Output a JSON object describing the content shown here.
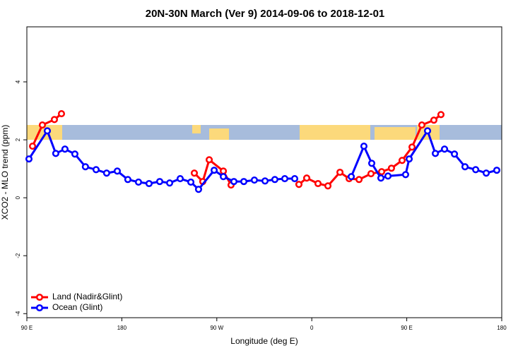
{
  "chart_data": {
    "type": "line",
    "title": "20N-30N March (Ver 9)   2014-09-06 to 2018-12-01",
    "xlabel": "Longitude (deg E)",
    "ylabel": "XCO2 - MLO trend (ppm)",
    "xlim": [
      90,
      540
    ],
    "ylim": [
      -4.14,
      5.9
    ],
    "xticks": [
      {
        "value": 90,
        "label": "90 E"
      },
      180,
      {
        "value": 270,
        "label": "90 W"
      },
      {
        "value": 360,
        "label": "0"
      },
      {
        "value": 450,
        "label": "90 E"
      },
      {
        "value": 540,
        "label": "180"
      }
    ],
    "yticks": [
      4,
      2,
      0,
      -2,
      -4
    ],
    "legend": "bottom-left",
    "series": [
      {
        "name": "Land (Nadir&Glint)",
        "color": "#ff0000",
        "x": [
          95.4,
          104.7,
          116.1,
          122.8,
          null,
          248.7,
          256.7,
          262.8,
          276.2,
          283.5,
          null,
          347.8,
          355.2,
          365.9,
          375.3,
          386.7,
          395.4,
          404.8,
          416.1,
          426.2,
          435.5,
          445.6,
          455.0,
          464.3,
          475.7,
          482.4
        ],
        "values": [
          1.78,
          2.51,
          2.7,
          2.9,
          null,
          0.85,
          0.56,
          1.31,
          0.92,
          0.44,
          null,
          0.46,
          0.68,
          0.49,
          0.41,
          0.88,
          0.66,
          0.63,
          0.83,
          0.9,
          1.02,
          1.29,
          1.75,
          2.51,
          2.68,
          2.87
        ]
      },
      {
        "name": "Ocean (Glint)",
        "color": "#0000ff",
        "x": [
          92.0,
          109.4,
          117.4,
          126.1,
          135.5,
          145.5,
          155.6,
          165.6,
          175.7,
          185.7,
          195.8,
          205.8,
          215.9,
          225.3,
          235.3,
          245.4,
          252.7,
          267.5,
          276.2,
          286.2,
          295.6,
          305.6,
          315.7,
          325.0,
          334.4,
          343.8,
          null,
          397.4,
          409.4,
          416.8,
          425.5,
          432.2,
          448.9,
          452.3,
          469.7,
          477.1,
          485.8,
          495.2,
          505.2,
          515.3,
          525.3,
          535.3
        ],
        "values": [
          1.34,
          2.31,
          1.53,
          1.68,
          1.51,
          1.07,
          0.97,
          0.85,
          0.92,
          0.63,
          0.54,
          0.49,
          0.56,
          0.51,
          0.66,
          0.54,
          0.29,
          0.95,
          0.73,
          0.56,
          0.56,
          0.61,
          0.58,
          0.63,
          0.66,
          0.66,
          null,
          0.73,
          1.78,
          1.19,
          0.68,
          0.75,
          0.8,
          1.34,
          2.31,
          1.53,
          1.68,
          1.51,
          1.07,
          0.97,
          0.85,
          0.95
        ]
      }
    ]
  }
}
